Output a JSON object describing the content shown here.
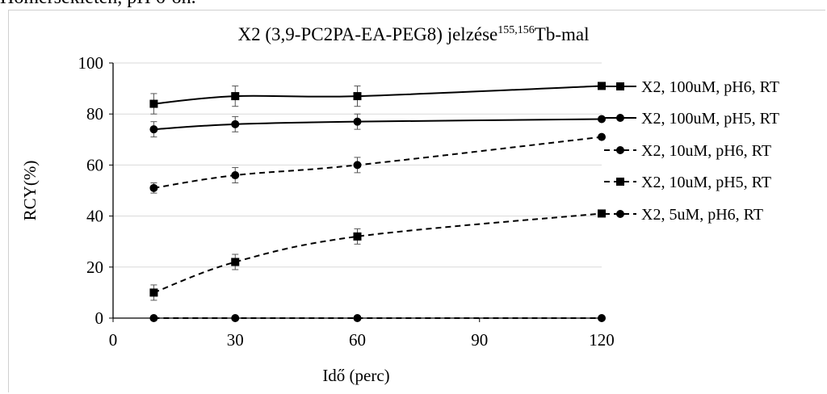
{
  "page": {
    "top_partial_text": "Hőmérsékleten, pH 6-on."
  },
  "chart_data": {
    "type": "line",
    "title": "X2 (3,9-PC2PA-EA-PEG8) jelzése",
    "title_superscript": "155,156",
    "title_suffix": "Tb-mal",
    "xlabel": "Idő (perc)",
    "ylabel": "RCY(%)",
    "xlim": [
      0,
      120
    ],
    "ylim": [
      0,
      100
    ],
    "x_ticks": [
      "0",
      "30",
      "60",
      "90",
      "120"
    ],
    "y_ticks": [
      "0",
      "20",
      "40",
      "60",
      "80",
      "100"
    ],
    "grid": "horizontal",
    "legend_position": "right",
    "x": [
      10,
      30,
      60,
      120
    ],
    "series": [
      {
        "name": "X2, 100uM, pH6, RT",
        "marker": "square",
        "dash": "solid",
        "values": [
          84,
          87,
          87,
          91
        ],
        "errors": [
          4,
          4,
          4,
          0
        ]
      },
      {
        "name": "X2, 100uM, pH5, RT",
        "marker": "circle",
        "dash": "solid",
        "values": [
          74,
          76,
          77,
          78
        ],
        "errors": [
          3,
          3,
          3,
          0
        ]
      },
      {
        "name": "X2, 10uM, pH6, RT",
        "marker": "circle",
        "dash": "dashed",
        "values": [
          51,
          56,
          60,
          71
        ],
        "errors": [
          2,
          3,
          3,
          0
        ]
      },
      {
        "name": "X2, 10uM, pH5, RT",
        "marker": "square",
        "dash": "dashed",
        "values": [
          10,
          22,
          32,
          41
        ],
        "errors": [
          3,
          3,
          3,
          0
        ]
      },
      {
        "name": "X2, 5uM, pH6, RT",
        "marker": "circle",
        "dash": "dashed",
        "values": [
          0,
          0,
          0,
          0
        ],
        "errors": [
          0,
          0,
          0,
          0
        ]
      }
    ],
    "colors": {
      "line": "#000000",
      "grid": "#d9d9d9"
    }
  }
}
